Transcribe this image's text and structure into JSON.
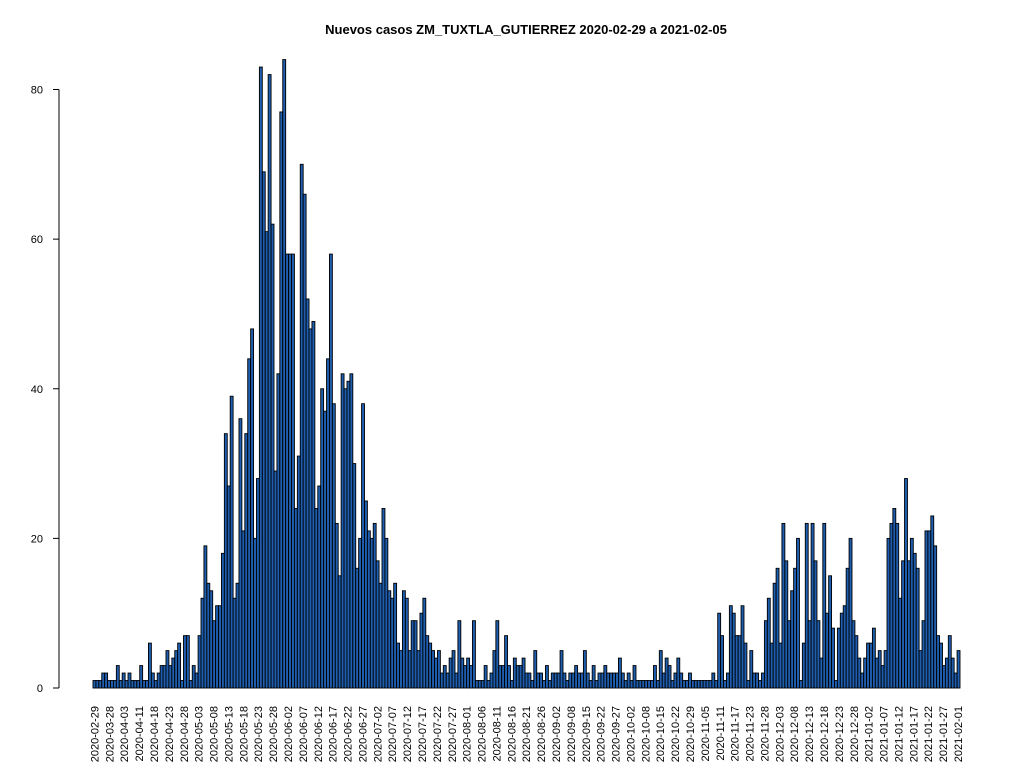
{
  "colors": {
    "bar_fill": "#1F5EAE",
    "bar_stroke": "#000000",
    "axis": "#000000"
  },
  "chart_data": {
    "type": "bar",
    "title": "Nuevos casos ZM_TUXTLA_GUTIERREZ 2020-02-29 a 2021-02-05",
    "xlabel": "",
    "ylabel": "",
    "ylim": [
      0,
      85
    ],
    "y_ticks": [
      0,
      20,
      40,
      60,
      80
    ],
    "start_date": "2020-02-29",
    "x_tick_labels": [
      "2020-02-29",
      "2020-03-28",
      "2020-04-03",
      "2020-04-11",
      "2020-04-18",
      "2020-04-23",
      "2020-04-28",
      "2020-05-03",
      "2020-05-08",
      "2020-05-13",
      "2020-05-18",
      "2020-05-23",
      "2020-05-28",
      "2020-06-02",
      "2020-06-07",
      "2020-06-12",
      "2020-06-17",
      "2020-06-22",
      "2020-06-27",
      "2020-07-02",
      "2020-07-07",
      "2020-07-12",
      "2020-07-17",
      "2020-07-22",
      "2020-07-27",
      "2020-08-01",
      "2020-08-06",
      "2020-08-11",
      "2020-08-16",
      "2020-08-21",
      "2020-08-26",
      "2020-09-02",
      "2020-09-08",
      "2020-09-15",
      "2020-09-22",
      "2020-09-27",
      "2020-10-02",
      "2020-10-08",
      "2020-10-15",
      "2020-10-22",
      "2020-10-29",
      "2020-11-05",
      "2020-11-11",
      "2020-11-17",
      "2020-11-23",
      "2020-11-28",
      "2020-12-03",
      "2020-12-08",
      "2020-12-13",
      "2020-12-18",
      "2020-12-23",
      "2020-12-28",
      "2021-01-02",
      "2021-01-07",
      "2021-01-12",
      "2021-01-17",
      "2021-01-22",
      "2021-01-27",
      "2021-02-01"
    ],
    "values": [
      1,
      1,
      1,
      2,
      2,
      1,
      1,
      1,
      3,
      1,
      2,
      1,
      2,
      1,
      1,
      1,
      3,
      1,
      1,
      6,
      2,
      1,
      2,
      3,
      3,
      5,
      3,
      4,
      5,
      6,
      1,
      7,
      7,
      1,
      3,
      2,
      7,
      12,
      19,
      14,
      13,
      9,
      11,
      11,
      18,
      34,
      27,
      39,
      12,
      14,
      36,
      21,
      34,
      44,
      48,
      20,
      28,
      83,
      69,
      61,
      82,
      62,
      29,
      42,
      77,
      84,
      58,
      58,
      58,
      24,
      31,
      70,
      66,
      52,
      48,
      49,
      24,
      27,
      40,
      37,
      44,
      58,
      38,
      22,
      15,
      42,
      40,
      41,
      42,
      30,
      16,
      20,
      38,
      25,
      21,
      20,
      22,
      17,
      14,
      24,
      20,
      13,
      12,
      14,
      6,
      5,
      13,
      12,
      5,
      9,
      9,
      5,
      10,
      12,
      7,
      6,
      5,
      4,
      5,
      2,
      3,
      2,
      4,
      5,
      2,
      9,
      4,
      3,
      4,
      3,
      9,
      1,
      1,
      1,
      3,
      1,
      2,
      5,
      9,
      3,
      3,
      7,
      3,
      1,
      4,
      3,
      3,
      4,
      2,
      2,
      1,
      5,
      2,
      2,
      1,
      3,
      1,
      2,
      2,
      2,
      5,
      2,
      1,
      2,
      2,
      3,
      2,
      2,
      5,
      2,
      1,
      3,
      1,
      2,
      2,
      3,
      2,
      2,
      2,
      2,
      4,
      2,
      1,
      2,
      1,
      3,
      1,
      1,
      1,
      1,
      1,
      1,
      3,
      1,
      5,
      2,
      4,
      3,
      1,
      2,
      4,
      2,
      1,
      1,
      2,
      1,
      1,
      1,
      1,
      1,
      1,
      1,
      2,
      1,
      10,
      7,
      1,
      2,
      11,
      10,
      7,
      7,
      11,
      6,
      1,
      5,
      2,
      2,
      1,
      2,
      9,
      12,
      6,
      14,
      16,
      6,
      22,
      17,
      9,
      13,
      16,
      20,
      1,
      6,
      22,
      9,
      22,
      17,
      9,
      4,
      22,
      10,
      15,
      8,
      1,
      8,
      10,
      11,
      16,
      20,
      9,
      7,
      4,
      2,
      4,
      6,
      6,
      8,
      4,
      5,
      3,
      5,
      20,
      22,
      24,
      22,
      12,
      17,
      28,
      17,
      20,
      18,
      16,
      5,
      9,
      21,
      21,
      23,
      19,
      7,
      6,
      3,
      4,
      7,
      4,
      2,
      5
    ]
  }
}
